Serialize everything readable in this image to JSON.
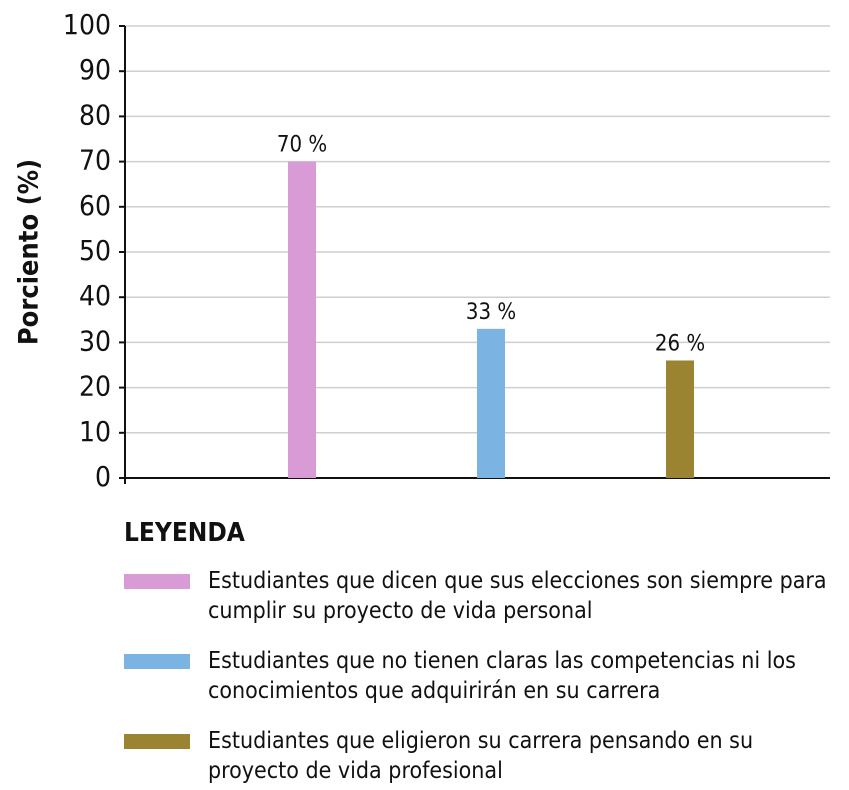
{
  "chart_data": {
    "type": "bar",
    "ylabel": "Porciento (%)",
    "legend_title": "LEYENDA",
    "categories": [
      "Estudiantes que dicen que sus elecciones son siempre para cumplir su proyecto de vida personal",
      "Estudiantes que no tienen claras las competencias ni los conocimientos que adquirirán en su carrera",
      "Estudiantes que eligieron su carrera pensando en su proyecto de vida profesional"
    ],
    "values": [
      70,
      33,
      26
    ],
    "value_labels": [
      "70 %",
      "33 %",
      "26 %"
    ],
    "colors": [
      "#d89bd6",
      "#7bb3e3",
      "#9a8432"
    ],
    "ylim": [
      0,
      100
    ],
    "yticks": [
      0,
      10,
      20,
      30,
      40,
      50,
      60,
      70,
      80,
      90,
      100
    ],
    "grid": true
  }
}
